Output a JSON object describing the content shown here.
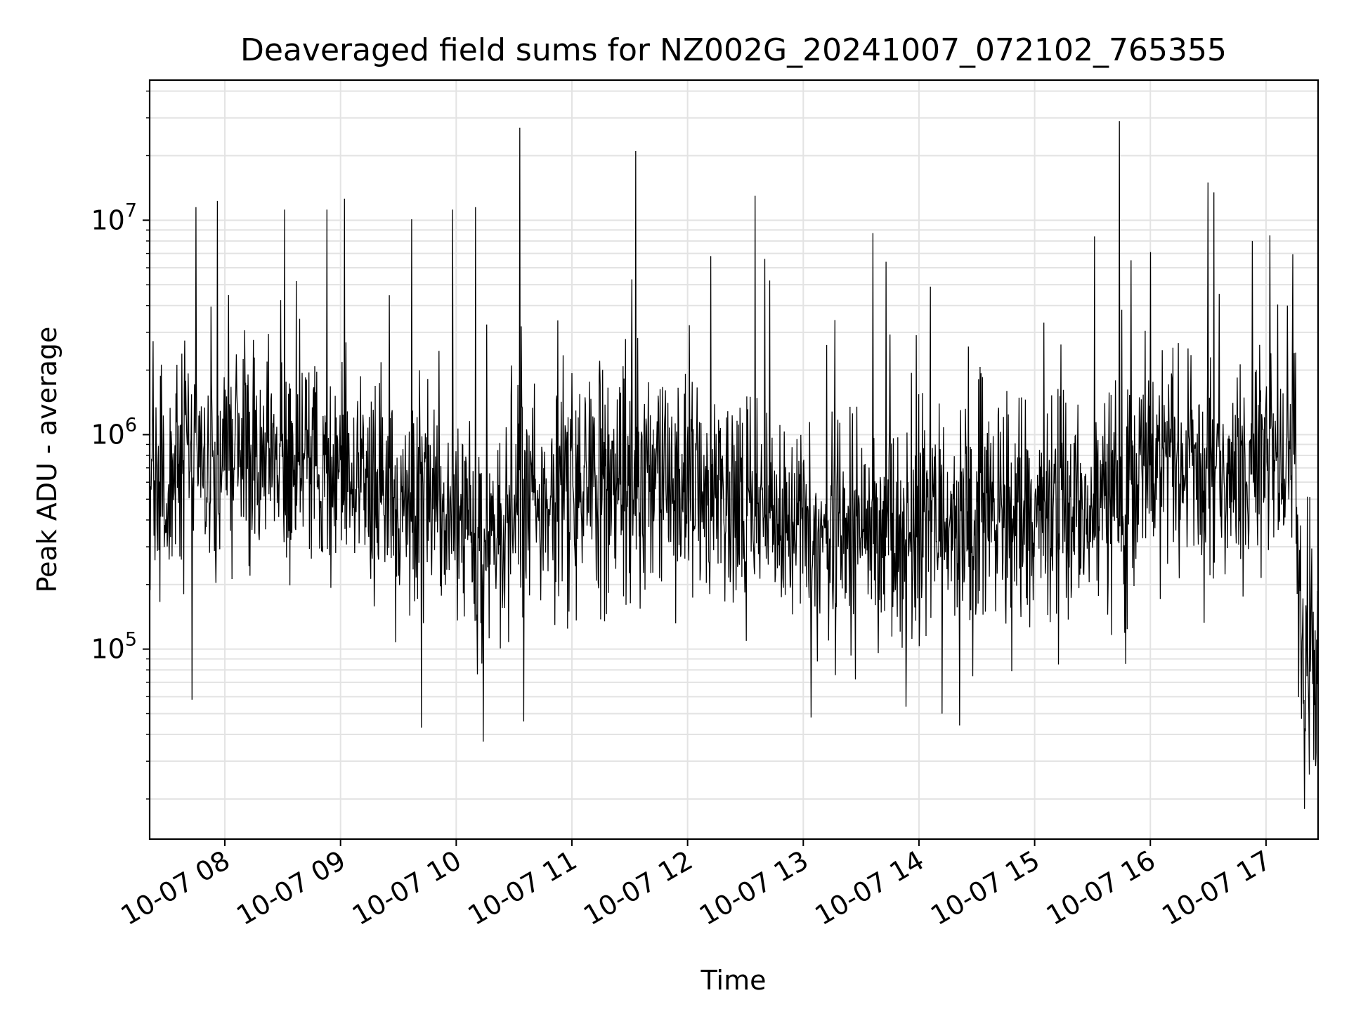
{
  "chart_data": {
    "type": "line",
    "title": "Deaveraged field sums for NZ002G_20241007_072102_765355",
    "xlabel": "Time",
    "ylabel": "Peak ADU - average",
    "yscale": "log",
    "ylim": [
      13000,
      45000000
    ],
    "xlim": [
      "2024-10-07 07:21",
      "2024-10-07 17:27"
    ],
    "grid": true,
    "x_ticks": [
      {
        "value": "2024-10-07 08:00",
        "label": "10-07 08"
      },
      {
        "value": "2024-10-07 09:00",
        "label": "10-07 09"
      },
      {
        "value": "2024-10-07 10:00",
        "label": "10-07 10"
      },
      {
        "value": "2024-10-07 11:00",
        "label": "10-07 11"
      },
      {
        "value": "2024-10-07 12:00",
        "label": "10-07 12"
      },
      {
        "value": "2024-10-07 13:00",
        "label": "10-07 13"
      },
      {
        "value": "2024-10-07 14:00",
        "label": "10-07 14"
      },
      {
        "value": "2024-10-07 15:00",
        "label": "10-07 15"
      },
      {
        "value": "2024-10-07 16:00",
        "label": "10-07 16"
      },
      {
        "value": "2024-10-07 17:00",
        "label": "10-07 17"
      }
    ],
    "y_ticks": [
      {
        "value": 100000,
        "base": "10",
        "exp": "5"
      },
      {
        "value": 1000000,
        "base": "10",
        "exp": "6"
      },
      {
        "value": 10000000,
        "base": "10",
        "exp": "7"
      }
    ],
    "line_color": "#000000",
    "series_profile": [
      {
        "x": "2024-10-07 07:21",
        "y": 500000
      },
      {
        "x": "2024-10-07 07:45",
        "y": 750000
      },
      {
        "x": "2024-10-07 08:10",
        "y": 800000
      },
      {
        "x": "2024-10-07 08:40",
        "y": 700000
      },
      {
        "x": "2024-10-07 09:10",
        "y": 650000
      },
      {
        "x": "2024-10-07 09:40",
        "y": 500000
      },
      {
        "x": "2024-10-07 10:15",
        "y": 300000
      },
      {
        "x": "2024-10-07 10:45",
        "y": 500000
      },
      {
        "x": "2024-10-07 11:20",
        "y": 600000
      },
      {
        "x": "2024-10-07 11:50",
        "y": 550000
      },
      {
        "x": "2024-10-07 12:15",
        "y": 500000
      },
      {
        "x": "2024-10-07 12:45",
        "y": 400000
      },
      {
        "x": "2024-10-07 13:20",
        "y": 330000
      },
      {
        "x": "2024-10-07 13:50",
        "y": 350000
      },
      {
        "x": "2024-10-07 14:20",
        "y": 380000
      },
      {
        "x": "2024-10-07 14:50",
        "y": 420000
      },
      {
        "x": "2024-10-07 15:20",
        "y": 450000
      },
      {
        "x": "2024-10-07 15:50",
        "y": 650000
      },
      {
        "x": "2024-10-07 16:20",
        "y": 700000
      },
      {
        "x": "2024-10-07 16:50",
        "y": 650000
      },
      {
        "x": "2024-10-07 17:05",
        "y": 1000000
      },
      {
        "x": "2024-10-07 17:15",
        "y": 800000
      },
      {
        "x": "2024-10-07 17:18",
        "y": 100000
      },
      {
        "x": "2024-10-07 17:27",
        "y": 90000
      }
    ],
    "spikes": [
      {
        "x": "2024-10-07 07:45",
        "y": 11500000
      },
      {
        "x": "2024-10-07 07:56",
        "y": 12300000
      },
      {
        "x": "2024-10-07 08:53",
        "y": 11200000
      },
      {
        "x": "2024-10-07 09:02",
        "y": 12600000
      },
      {
        "x": "2024-10-07 08:37",
        "y": 5200000
      },
      {
        "x": "2024-10-07 09:37",
        "y": 10100000
      },
      {
        "x": "2024-10-07 09:58",
        "y": 11200000
      },
      {
        "x": "2024-10-07 10:10",
        "y": 11500000
      },
      {
        "x": "2024-10-07 10:33",
        "y": 27000000
      },
      {
        "x": "2024-10-07 11:33",
        "y": 21000000
      },
      {
        "x": "2024-10-07 11:31",
        "y": 5300000
      },
      {
        "x": "2024-10-07 12:12",
        "y": 6800000
      },
      {
        "x": "2024-10-07 12:35",
        "y": 13000000
      },
      {
        "x": "2024-10-07 12:40",
        "y": 6600000
      },
      {
        "x": "2024-10-07 13:36",
        "y": 8700000
      },
      {
        "x": "2024-10-07 13:43",
        "y": 6400000
      },
      {
        "x": "2024-10-07 14:06",
        "y": 4900000
      },
      {
        "x": "2024-10-07 15:31",
        "y": 8400000
      },
      {
        "x": "2024-10-07 15:44",
        "y": 29000000
      },
      {
        "x": "2024-10-07 15:50",
        "y": 6500000
      },
      {
        "x": "2024-10-07 16:00",
        "y": 7100000
      },
      {
        "x": "2024-10-07 16:30",
        "y": 15000000
      },
      {
        "x": "2024-10-07 16:33",
        "y": 13500000
      },
      {
        "x": "2024-10-07 16:53",
        "y": 8000000
      },
      {
        "x": "2024-10-07 17:02",
        "y": 8500000
      },
      {
        "x": "2024-10-07 17:11",
        "y": 4000000
      }
    ],
    "dips": [
      {
        "x": "2024-10-07 07:43",
        "y": 58000
      },
      {
        "x": "2024-10-07 09:42",
        "y": 43000
      },
      {
        "x": "2024-10-07 10:14",
        "y": 37000
      },
      {
        "x": "2024-10-07 10:35",
        "y": 46000
      },
      {
        "x": "2024-10-07 13:04",
        "y": 48000
      },
      {
        "x": "2024-10-07 14:12",
        "y": 50000
      },
      {
        "x": "2024-10-07 14:21",
        "y": 44000
      },
      {
        "x": "2024-10-07 17:20",
        "y": 18000
      },
      {
        "x": "2024-10-07 17:26",
        "y": 33000
      }
    ]
  }
}
